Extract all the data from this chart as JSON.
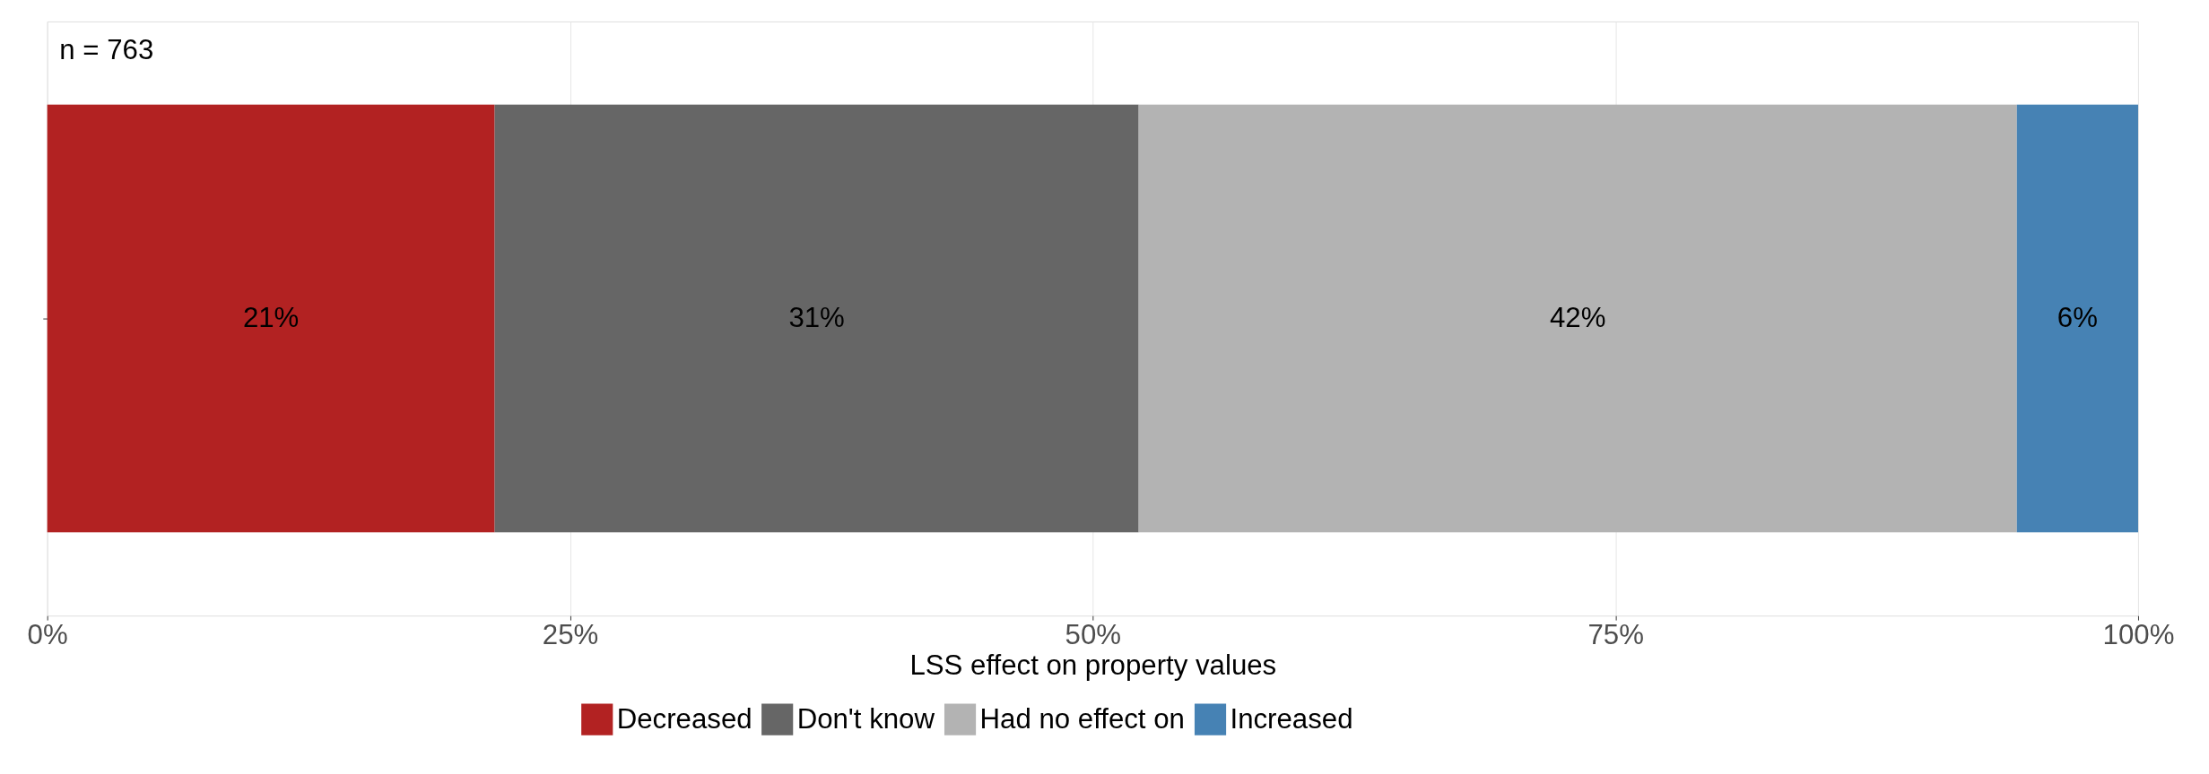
{
  "chart_data": {
    "type": "bar",
    "orientation": "horizontal",
    "stacked": true,
    "categories": [
      null
    ],
    "xlabel": "LSS effect on property values",
    "annotations": [
      "n = 763"
    ],
    "xlim": [
      0,
      100
    ],
    "xticks": [
      {
        "value": 0,
        "label": "0%"
      },
      {
        "value": 25,
        "label": "25%"
      },
      {
        "value": 50,
        "label": "50%"
      },
      {
        "value": 75,
        "label": "75%"
      },
      {
        "value": 100,
        "label": "100%"
      }
    ],
    "grid": "x",
    "legend": "bottom",
    "series": [
      {
        "name": "Decreased",
        "color": "#b22222",
        "values": [
          21.4
        ],
        "value_labels": [
          "21%"
        ]
      },
      {
        "name": "Don't know",
        "color": "#666666",
        "values": [
          30.8
        ],
        "value_labels": [
          "31%"
        ]
      },
      {
        "name": "Had no effect on",
        "color": "#b3b3b3",
        "values": [
          42
        ],
        "value_labels": [
          "42%"
        ]
      },
      {
        "name": "Increased",
        "color": "#4682b4",
        "values": [
          5.8
        ],
        "value_labels": [
          "6%"
        ]
      }
    ]
  }
}
